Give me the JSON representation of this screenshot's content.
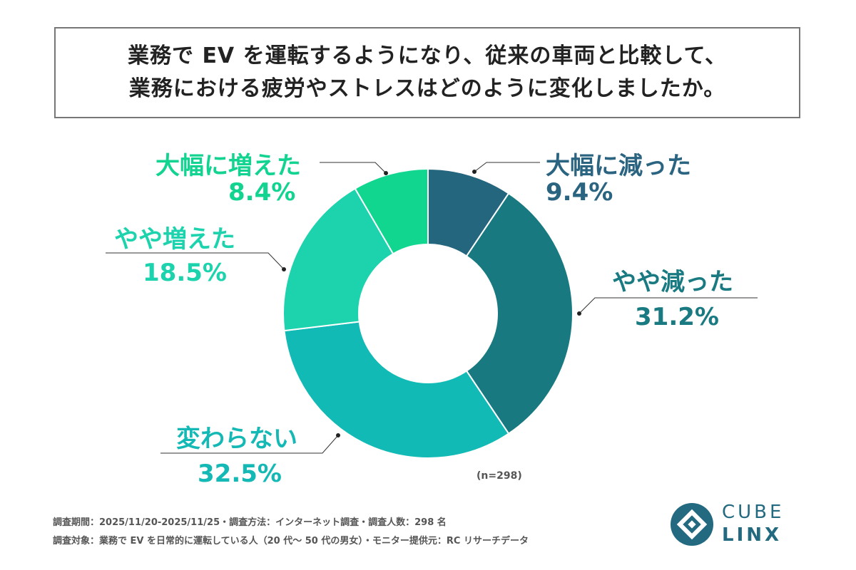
{
  "title": {
    "line1": "業務で EV を運転するようになり、従来の車両と比較して、",
    "line2": "業務における疲労やストレスはどのように変化しましたか。"
  },
  "chart_data": {
    "type": "pie",
    "donut": true,
    "start": "top-clockwise",
    "categories": [
      "大幅に減った",
      "やや減った",
      "変わらない",
      "やや増えた",
      "大幅に増えた"
    ],
    "values": [
      9.4,
      31.2,
      32.5,
      18.5,
      8.4
    ],
    "value_labels": [
      "9.4%",
      "31.2%",
      "32.5%",
      "18.5%",
      "8.4%"
    ],
    "colors": [
      "#25667f",
      "#187a80",
      "#12bab5",
      "#1cd3ae",
      "#10d690"
    ],
    "label_colors": [
      "#2a6480",
      "#1a7a82",
      "#14b9b5",
      "#1dd3ae",
      "#12d490"
    ],
    "sample_note": "(n=298)"
  },
  "footer": {
    "line1": "調査期間：2025/11/20-2025/11/25・調査方法：インターネット調査・調査人数：298 名",
    "line2": "調査対象：業務で EV を日常的に運転している人（20 代～ 50 代の男女）・モニター提供元：RC リサーチデータ"
  },
  "logo": {
    "line1": "CUBE",
    "line2": "LINX",
    "color": "#236a80"
  }
}
